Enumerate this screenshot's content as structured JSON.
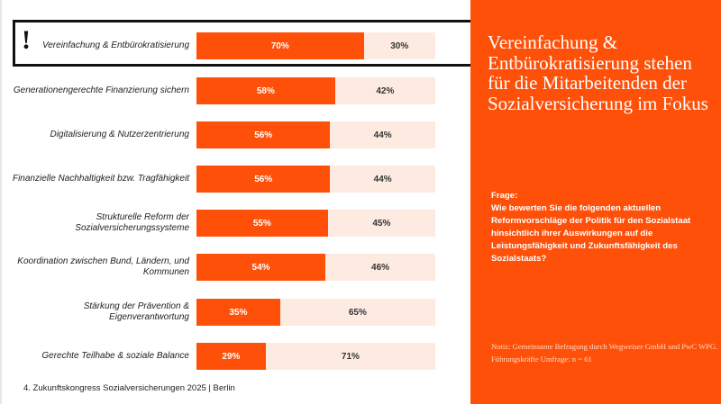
{
  "chart_data": {
    "type": "bar",
    "orientation": "horizontal-stacked-100",
    "categories": [
      "Vereinfachung & Entbürokratisierung",
      "Generationengerechte Finanzierung sichern",
      "Digitalisierung & Nutzerzentrierung",
      "Finanzielle Nachhaltigkeit bzw. Tragfähigkeit",
      "Strukturelle Reform der Sozialversicherungssysteme",
      "Koordination zwischen Bund, Ländern, und Kommunen",
      "Stärkung der Prävention & Eigenverantwortung",
      "Gerechte Teilhabe & soziale Balance"
    ],
    "series": [
      {
        "values": [
          70,
          58,
          56,
          56,
          55,
          54,
          35,
          29
        ],
        "color": "#fe5009"
      },
      {
        "values": [
          30,
          42,
          44,
          44,
          45,
          46,
          65,
          71
        ],
        "color": "#fdebe2"
      }
    ],
    "value_suffix": "%",
    "highlighted_category": "Vereinfachung & Entbürokratisierung",
    "highlight_marker": "!"
  },
  "footer": "4. Zukunftskongress Sozialversicherungen 2025 | Berlin",
  "panel": {
    "title": "Vereinfachung & Entbürokratisierung stehen für die Mitarbeitenden der Sozialversicherung im Fokus",
    "question_label": "Frage:",
    "question": "Wie bewerten Sie die folgenden aktuellen Reformvorschläge der Politik für den Sozialstaat hinsichtlich ihrer Auswirkungen auf die Leistungsfähigkeit und Zukunftsfähigkeit des Sozialstaats?",
    "note": "Notiz: Gemeinsame Befragung durch Wegweiser GmbH und PwC WPG. Führungskräfte Umfrage: n = 61",
    "color": "#fe5009"
  }
}
